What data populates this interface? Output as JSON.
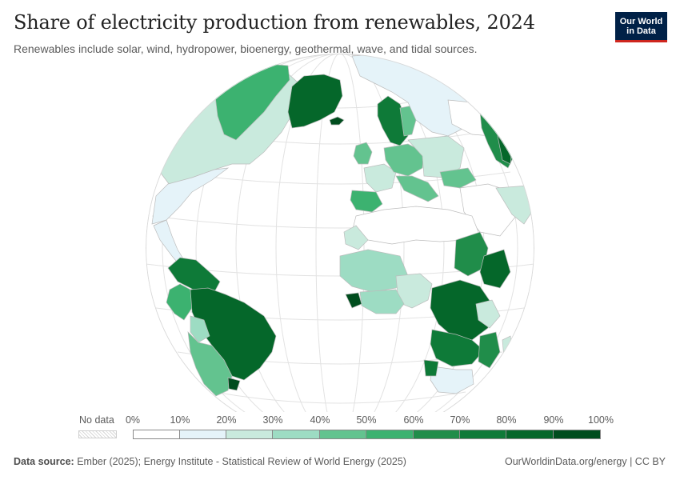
{
  "header": {
    "title": "Share of electricity production from renewables, 2024",
    "subtitle": "Renewables include solar, wind, hydropower, bioenergy, geothermal, wave, and tidal sources."
  },
  "logo": {
    "line1": "Our World",
    "line2": "in Data"
  },
  "legend": {
    "no_data_label": "No data",
    "ticks": [
      "0%",
      "10%",
      "20%",
      "30%",
      "40%",
      "50%",
      "60%",
      "70%",
      "80%",
      "90%",
      "100%"
    ],
    "colors": [
      "#ffffff",
      "#e5f3f9",
      "#c9eadd",
      "#9ddcc3",
      "#63c38f",
      "#3cb270",
      "#208d4a",
      "#0e7a38",
      "#05672a",
      "#004d1e"
    ]
  },
  "colors": {
    "ocean": "#ffffff",
    "graticule": "#e2e2e2",
    "land_border": "#bcbcbc"
  },
  "footer": {
    "source_label": "Data source:",
    "source_text": "Ember (2025); Energy Institute - Statistical Review of World Energy (2025)",
    "url_text": "OurWorldinData.org/energy | CC BY"
  }
}
